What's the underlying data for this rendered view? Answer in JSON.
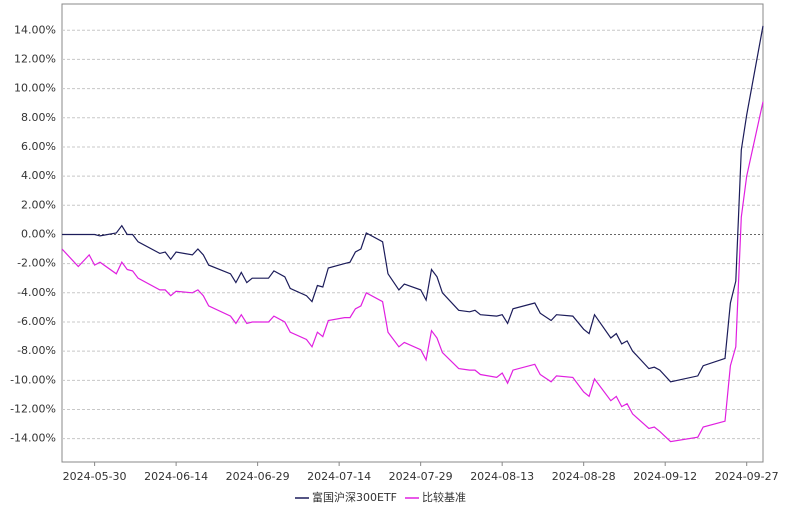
{
  "chart_data": {
    "type": "line",
    "x": [
      "2024-05-24",
      "2024-05-27",
      "2024-05-29",
      "2024-05-30",
      "2024-05-31",
      "2024-06-03",
      "2024-06-04",
      "2024-06-05",
      "2024-06-06",
      "2024-06-07",
      "2024-06-11",
      "2024-06-12",
      "2024-06-13",
      "2024-06-14",
      "2024-06-17",
      "2024-06-18",
      "2024-06-19",
      "2024-06-20",
      "2024-06-24",
      "2024-06-25",
      "2024-06-26",
      "2024-06-27",
      "2024-06-28",
      "2024-07-01",
      "2024-07-02",
      "2024-07-04",
      "2024-07-05",
      "2024-07-08",
      "2024-07-09",
      "2024-07-10",
      "2024-07-11",
      "2024-07-12",
      "2024-07-15",
      "2024-07-16",
      "2024-07-17",
      "2024-07-18",
      "2024-07-19",
      "2024-07-22",
      "2024-07-23",
      "2024-07-25",
      "2024-07-26",
      "2024-07-29",
      "2024-07-30",
      "2024-07-31",
      "2024-08-01",
      "2024-08-02",
      "2024-08-05",
      "2024-08-07",
      "2024-08-08",
      "2024-08-09",
      "2024-08-12",
      "2024-08-13",
      "2024-08-14",
      "2024-08-15",
      "2024-08-19",
      "2024-08-20",
      "2024-08-22",
      "2024-08-23",
      "2024-08-26",
      "2024-08-28",
      "2024-08-29",
      "2024-08-30",
      "2024-09-02",
      "2024-09-03",
      "2024-09-04",
      "2024-09-05",
      "2024-09-06",
      "2024-09-09",
      "2024-09-10",
      "2024-09-11",
      "2024-09-13",
      "2024-09-18",
      "2024-09-19",
      "2024-09-23",
      "2024-09-24",
      "2024-09-25",
      "2024-09-26",
      "2024-09-27",
      "2024-09-30"
    ],
    "series": [
      {
        "name": "富国沪深300ETF",
        "color": "#1c1c5a",
        "values": [
          0,
          0,
          0,
          0,
          -0.1,
          0.1,
          0.6,
          0.0,
          0.0,
          -0.5,
          -1.3,
          -1.2,
          -1.7,
          -1.2,
          -1.4,
          -1.0,
          -1.4,
          -2.1,
          -2.7,
          -3.3,
          -2.6,
          -3.3,
          -3.0,
          -3.0,
          -2.5,
          -2.9,
          -3.7,
          -4.2,
          -4.6,
          -3.5,
          -3.6,
          -2.3,
          -2.0,
          -1.9,
          -1.2,
          -1.0,
          0.1,
          -0.5,
          -2.7,
          -3.8,
          -3.4,
          -3.8,
          -4.5,
          -2.4,
          -2.9,
          -4.0,
          -5.2,
          -5.3,
          -5.2,
          -5.5,
          -5.6,
          -5.5,
          -6.1,
          -5.1,
          -4.7,
          -5.4,
          -5.9,
          -5.5,
          -5.6,
          -6.5,
          -6.8,
          -5.5,
          -7.1,
          -6.8,
          -7.5,
          -7.3,
          -8.0,
          -9.2,
          -9.1,
          -9.3,
          -10.1,
          -9.7,
          -9.0,
          -8.5,
          -4.7,
          -3.2,
          5.8,
          8.2,
          14.3
        ]
      },
      {
        "name": "比较基准",
        "color": "#e020e0",
        "values": [
          -1.0,
          -2.2,
          -1.4,
          -2.1,
          -1.9,
          -2.7,
          -1.9,
          -2.4,
          -2.5,
          -3.0,
          -3.8,
          -3.8,
          -4.2,
          -3.9,
          -4.0,
          -3.8,
          -4.2,
          -4.9,
          -5.6,
          -6.1,
          -5.5,
          -6.1,
          -6.0,
          -6.0,
          -5.6,
          -6.0,
          -6.7,
          -7.2,
          -7.7,
          -6.7,
          -7.0,
          -5.9,
          -5.7,
          -5.7,
          -5.1,
          -4.9,
          -4.0,
          -4.6,
          -6.7,
          -7.7,
          -7.4,
          -7.9,
          -8.6,
          -6.6,
          -7.1,
          -8.1,
          -9.2,
          -9.3,
          -9.3,
          -9.6,
          -9.8,
          -9.5,
          -10.2,
          -9.3,
          -8.9,
          -9.6,
          -10.1,
          -9.7,
          -9.8,
          -10.8,
          -11.1,
          -9.9,
          -11.4,
          -11.1,
          -11.8,
          -11.6,
          -12.3,
          -13.3,
          -13.2,
          -13.5,
          -14.2,
          -13.9,
          -13.2,
          -12.8,
          -9.0,
          -7.7,
          1.2,
          4.0,
          9.1
        ]
      }
    ],
    "xlim": [
      "2024-05-24",
      "2024-09-30"
    ],
    "xticks": [
      "2024-05-30",
      "2024-06-14",
      "2024-06-29",
      "2024-07-14",
      "2024-07-29",
      "2024-08-13",
      "2024-08-28",
      "2024-09-12",
      "2024-09-27"
    ],
    "ylim": [
      -15.6,
      15.8
    ],
    "yticks": [
      {
        "value": 14,
        "label": "14.00%"
      },
      {
        "value": 12,
        "label": "12.00%"
      },
      {
        "value": 10,
        "label": "10.00%"
      },
      {
        "value": 8,
        "label": "8.00%"
      },
      {
        "value": 6,
        "label": "6.00%"
      },
      {
        "value": 4,
        "label": "4.00%"
      },
      {
        "value": 2,
        "label": "2.00%"
      },
      {
        "value": 0,
        "label": "0.00%"
      },
      {
        "value": -2,
        "label": "-2.00%"
      },
      {
        "value": -4,
        "label": "-4.00%"
      },
      {
        "value": -6,
        "label": "-6.00%"
      },
      {
        "value": -8,
        "label": "-8.00%"
      },
      {
        "value": -10,
        "label": "-10.00%"
      },
      {
        "value": -12,
        "label": "-12.00%"
      },
      {
        "value": -14,
        "label": "-14.00%"
      }
    ],
    "grid": true,
    "legend": "bottom"
  }
}
